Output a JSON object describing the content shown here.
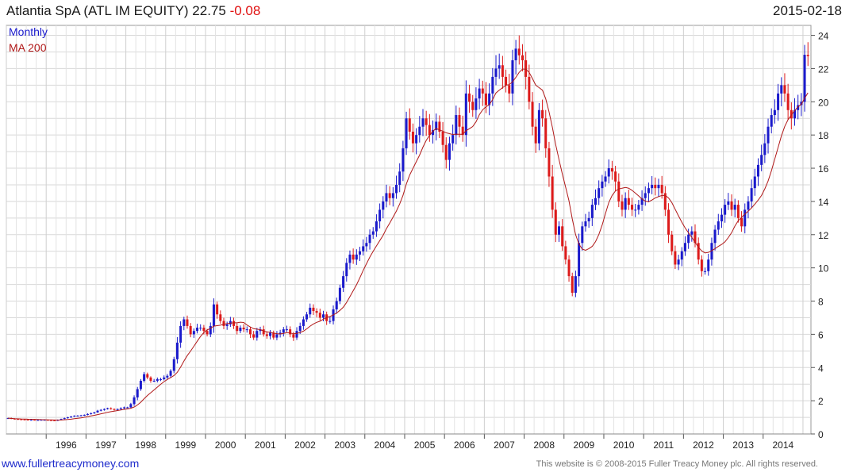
{
  "header": {
    "title": "Atlantia SpA (ATL IM EQUITY) 22.75",
    "change": "-0.08",
    "date": "2015-02-18"
  },
  "footer": {
    "site": "www.fullertreacymoney.com",
    "copyright": "This website is © 2008-2015 Fuller Treacy Money plc. All rights reserved."
  },
  "chart_data": {
    "type": "candlestick",
    "legend": [
      {
        "name": "Monthly",
        "color": "#1a1acc"
      },
      {
        "name": "MA 200",
        "color": "#b01818"
      }
    ],
    "legend_placement": "top-left",
    "y_axis": {
      "position": "right",
      "range": [
        0,
        24.6
      ],
      "ticks": [
        0,
        2,
        4,
        6,
        8,
        10,
        12,
        14,
        16,
        18,
        20,
        22,
        24
      ]
    },
    "x_axis": {
      "range": [
        "1995-01",
        "2015-03"
      ],
      "tick_labels": [
        "1996",
        "1997",
        "1998",
        "1999",
        "2000",
        "2001",
        "2002",
        "2003",
        "2004",
        "2005",
        "2006",
        "2007",
        "2008",
        "2009",
        "2010",
        "2011",
        "2012",
        "2013",
        "2014"
      ]
    },
    "grid": true,
    "colors": {
      "up": "#1a1acc",
      "down": "#dd1a1a",
      "ma": "#b01818",
      "grid": "#d8d8d8"
    },
    "series": {
      "close_by_year": [
        {
          "year": 1995,
          "monthly_close": [
            0.95,
            0.92,
            0.9,
            0.88,
            0.87,
            0.86,
            0.85,
            0.85,
            0.84,
            0.84,
            0.85,
            0.85
          ]
        },
        {
          "year": 1996,
          "monthly_close": [
            0.83,
            0.82,
            0.8,
            0.85,
            0.9,
            0.95,
            1.0,
            1.05,
            1.1,
            1.1,
            1.12,
            1.15
          ]
        },
        {
          "year": 1997,
          "monthly_close": [
            1.2,
            1.25,
            1.3,
            1.4,
            1.45,
            1.5,
            1.55,
            1.5,
            1.45,
            1.5,
            1.55,
            1.6
          ]
        },
        {
          "year": 1998,
          "monthly_close": [
            1.6,
            1.8,
            2.2,
            2.7,
            3.2,
            3.6,
            3.4,
            3.2,
            3.2,
            3.3,
            3.3,
            3.4
          ]
        },
        {
          "year": 1999,
          "monthly_close": [
            3.5,
            3.8,
            4.5,
            5.5,
            6.5,
            6.9,
            6.5,
            6.0,
            6.2,
            6.4,
            6.4,
            6.2
          ]
        },
        {
          "year": 2000,
          "monthly_close": [
            6.0,
            6.5,
            7.8,
            7.2,
            6.8,
            6.5,
            6.6,
            6.8,
            6.5,
            6.2,
            6.4,
            6.3
          ]
        },
        {
          "year": 2001,
          "monthly_close": [
            6.3,
            6.0,
            5.8,
            6.2,
            6.3,
            6.0,
            5.9,
            6.1,
            5.8,
            6.0,
            6.1,
            6.3
          ]
        },
        {
          "year": 2002,
          "monthly_close": [
            6.3,
            6.0,
            5.8,
            6.2,
            6.5,
            6.9,
            7.2,
            7.6,
            7.4,
            7.3,
            7.0,
            7.2
          ]
        },
        {
          "year": 2003,
          "monthly_close": [
            6.8,
            6.8,
            7.5,
            8.0,
            8.8,
            9.5,
            10.3,
            10.8,
            10.5,
            10.8,
            11.0,
            11.3
          ]
        },
        {
          "year": 2004,
          "monthly_close": [
            11.5,
            12.0,
            12.2,
            12.8,
            13.5,
            14.0,
            14.5,
            14.2,
            14.5,
            15.0,
            15.8,
            17.2
          ]
        },
        {
          "year": 2005,
          "monthly_close": [
            19.0,
            18.2,
            17.5,
            18.0,
            18.5,
            19.0,
            18.6,
            18.0,
            18.3,
            18.8,
            18.2,
            17.4
          ]
        },
        {
          "year": 2006,
          "monthly_close": [
            16.5,
            17.5,
            18.0,
            19.2,
            18.5,
            18.0,
            20.5,
            20.0,
            19.5,
            20.2,
            20.8,
            20.5
          ]
        },
        {
          "year": 2007,
          "monthly_close": [
            19.8,
            20.5,
            21.5,
            22.0,
            22.2,
            21.5,
            21.0,
            20.5,
            22.5,
            23.2,
            22.8,
            22.5
          ]
        },
        {
          "year": 2008,
          "monthly_close": [
            21.5,
            20.0,
            18.5,
            17.5,
            19.5,
            19.0,
            17.2,
            15.5,
            13.5,
            12.0,
            12.5,
            11.3
          ]
        },
        {
          "year": 2009,
          "monthly_close": [
            10.5,
            9.5,
            8.5,
            9.5,
            11.5,
            12.5,
            12.8,
            13.0,
            13.8,
            14.2,
            14.8,
            15.2
          ]
        },
        {
          "year": 2010,
          "monthly_close": [
            15.5,
            16.0,
            15.8,
            15.2,
            14.0,
            13.5,
            14.2,
            13.8,
            13.5,
            13.5,
            13.8,
            14.2
          ]
        },
        {
          "year": 2011,
          "monthly_close": [
            14.5,
            14.8,
            15.0,
            14.8,
            15.0,
            14.5,
            13.5,
            12.0,
            11.0,
            10.2,
            10.5,
            11.0
          ]
        },
        {
          "year": 2012,
          "monthly_close": [
            11.5,
            12.0,
            12.2,
            11.5,
            10.5,
            9.8,
            9.8,
            10.5,
            11.5,
            12.3,
            12.8,
            13.2
          ]
        },
        {
          "year": 2013,
          "monthly_close": [
            13.8,
            14.0,
            13.5,
            13.8,
            13.0,
            12.5,
            13.5,
            14.0,
            14.8,
            15.5,
            16.2,
            16.8
          ]
        },
        {
          "year": 2014,
          "monthly_close": [
            17.5,
            18.5,
            19.2,
            19.5,
            20.5,
            21.0,
            20.5,
            19.5,
            19.0,
            19.5,
            19.8,
            20.0
          ]
        },
        {
          "year": 2015,
          "monthly_close": [
            22.83,
            22.75
          ]
        }
      ],
      "first_open": 0.95
    }
  }
}
